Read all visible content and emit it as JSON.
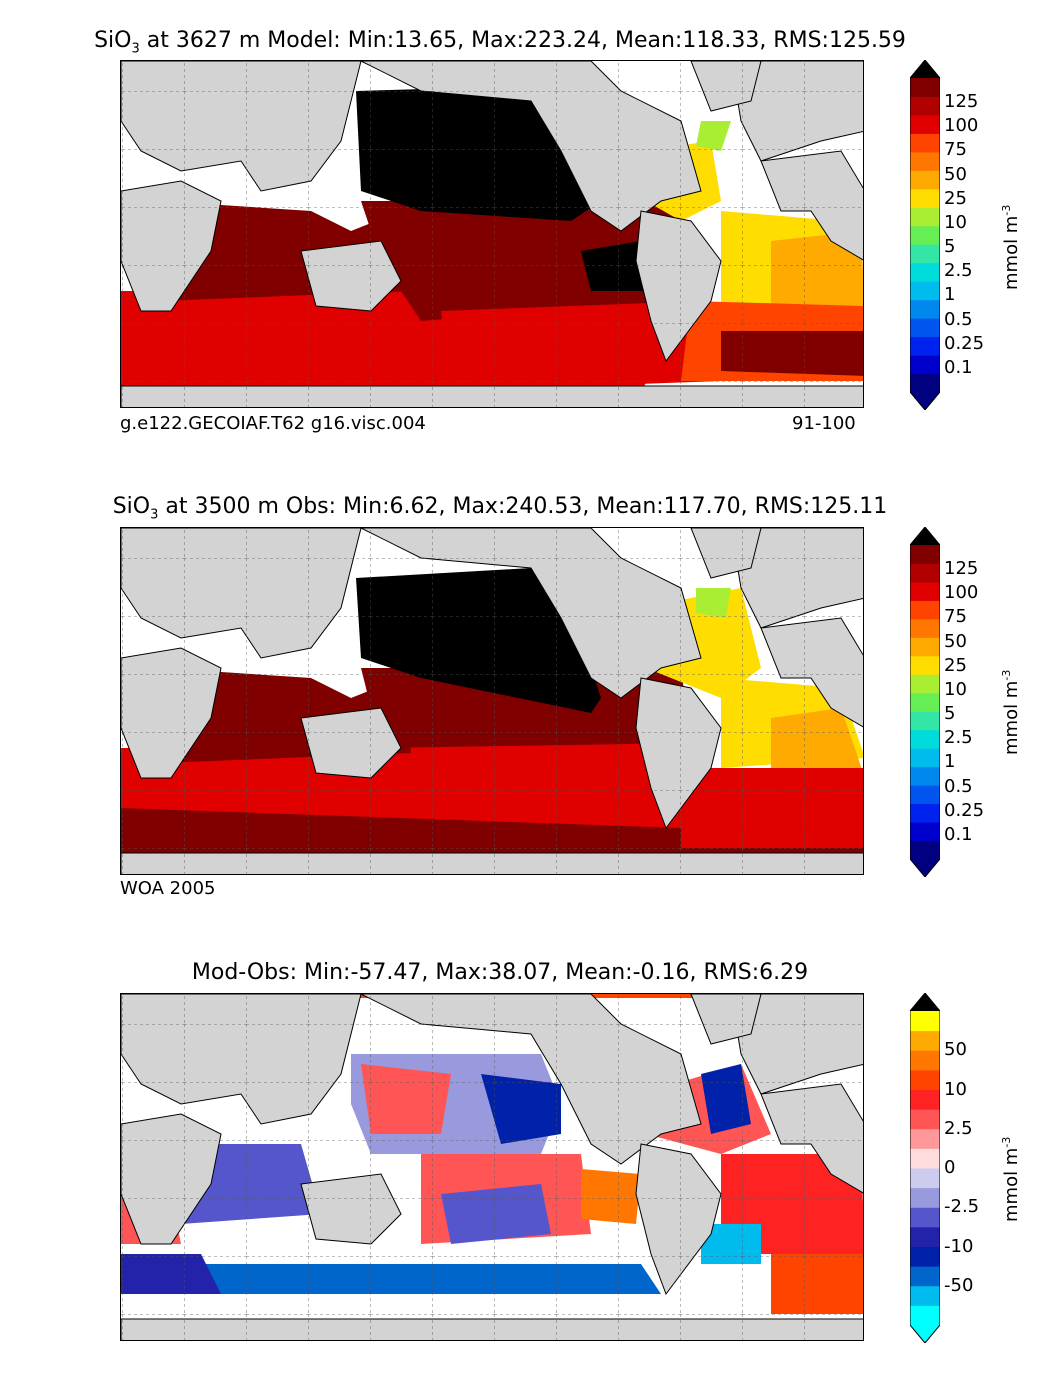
{
  "panels": [
    {
      "title_prefix": "SiO",
      "title_sub": "3",
      "title_rest": "  at 3627 m Model: Min:13.65, Max:223.24, Mean:118.33, RMS:125.59",
      "caption_left": "g.e122.GECOIAF.T62 g16.visc.004",
      "caption_right": "91-100",
      "colorbar": {
        "labels": [
          "125",
          "100",
          "75",
          "50",
          "25",
          "10",
          "5",
          "2.5",
          "1",
          "0.5",
          "0.25",
          "0.1"
        ],
        "colors": [
          "#000080",
          "#0000cd",
          "#0022ee",
          "#0055ee",
          "#0088ee",
          "#00bbee",
          "#00dcdc",
          "#33e6a6",
          "#66ee55",
          "#aaee33",
          "#ffdd00",
          "#ffaa00",
          "#ff7700",
          "#ff4400",
          "#e00000",
          "#b00000",
          "#800000"
        ],
        "upper_extend": "#000000",
        "lower_extend": "#000080",
        "unit": "mmol m",
        "unit_sup": "-3"
      }
    },
    {
      "title_prefix": "SiO",
      "title_sub": "3",
      "title_rest": "  at 3500 m Obs: Min:6.62, Max:240.53, Mean:117.70, RMS:125.11",
      "caption_left": "WOA 2005",
      "caption_right": "",
      "colorbar": {
        "labels": [
          "125",
          "100",
          "75",
          "50",
          "25",
          "10",
          "5",
          "2.5",
          "1",
          "0.5",
          "0.25",
          "0.1"
        ],
        "colors": [
          "#000080",
          "#0000cd",
          "#0022ee",
          "#0055ee",
          "#0088ee",
          "#00bbee",
          "#00dcdc",
          "#33e6a6",
          "#66ee55",
          "#aaee33",
          "#ffdd00",
          "#ffaa00",
          "#ff7700",
          "#ff4400",
          "#e00000",
          "#b00000",
          "#800000"
        ],
        "upper_extend": "#000000",
        "lower_extend": "#000080",
        "unit": "mmol m",
        "unit_sup": "-3"
      }
    },
    {
      "title_prefix": "Mod-Obs: Min:-57.47, Max:38.07, Mean:-0.16, RMS:6.29",
      "title_sub": "",
      "title_rest": "",
      "caption_left": "",
      "caption_right": "",
      "colorbar": {
        "labels": [
          "50",
          "10",
          "2.5",
          "0",
          "-2.5",
          "-10",
          "-50"
        ],
        "colors": [
          "#00ffff",
          "#00bbee",
          "#0066cc",
          "#0022aa",
          "#2222aa",
          "#5555cc",
          "#9999dd",
          "#ccccee",
          "#ffdddd",
          "#ff9999",
          "#ff5555",
          "#ff2222",
          "#ff4400",
          "#ff7700",
          "#ffaa00",
          "#ffff00"
        ],
        "upper_extend": "#000000",
        "lower_extend": "#00ffff",
        "unit": "mmol m",
        "unit_sup": "-3"
      }
    }
  ],
  "map_colors": {
    "land": "#d3d3d3",
    "missing": "#ffffff",
    "coast": "#000000",
    "grid": "#555555"
  }
}
